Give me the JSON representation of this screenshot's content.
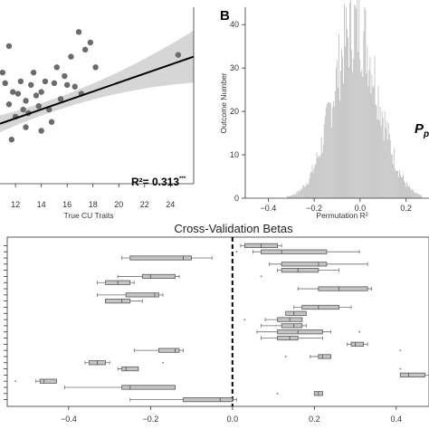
{
  "panel_b_letter": "B",
  "chart_data": [
    {
      "type": "scatter",
      "title": "",
      "xlabel": "True CU Traits",
      "ylabel": "",
      "xlim": [
        10.8,
        25.8
      ],
      "ylim": [
        0.0,
        1.0
      ],
      "xticks": [
        "12",
        "14",
        "16",
        "18",
        "20",
        "22",
        "24"
      ],
      "xtick_values": [
        12,
        14,
        16,
        18,
        20,
        22,
        24
      ],
      "annotation": "R²= 0.313",
      "annotation_sup": "***",
      "fit_line": {
        "x": [
          10.8,
          25.8
        ],
        "y": [
          0.34,
          0.72
        ]
      },
      "points": [
        {
          "x": 11.0,
          "y": 0.63
        },
        {
          "x": 11.2,
          "y": 0.57
        },
        {
          "x": 11.5,
          "y": 0.78
        },
        {
          "x": 11.5,
          "y": 0.45
        },
        {
          "x": 11.7,
          "y": 0.25
        },
        {
          "x": 11.8,
          "y": 0.52
        },
        {
          "x": 12.0,
          "y": 0.38
        },
        {
          "x": 12.2,
          "y": 0.51
        },
        {
          "x": 12.4,
          "y": 0.58
        },
        {
          "x": 12.6,
          "y": 0.42
        },
        {
          "x": 12.8,
          "y": 0.32
        },
        {
          "x": 12.8,
          "y": 0.47
        },
        {
          "x": 13.0,
          "y": 0.4
        },
        {
          "x": 13.2,
          "y": 0.56
        },
        {
          "x": 13.4,
          "y": 0.63
        },
        {
          "x": 13.6,
          "y": 0.5
        },
        {
          "x": 13.8,
          "y": 0.44
        },
        {
          "x": 14.0,
          "y": 0.52
        },
        {
          "x": 14.0,
          "y": 0.3
        },
        {
          "x": 14.3,
          "y": 0.58
        },
        {
          "x": 14.6,
          "y": 0.42
        },
        {
          "x": 14.8,
          "y": 0.35
        },
        {
          "x": 15.0,
          "y": 0.57
        },
        {
          "x": 15.2,
          "y": 0.66
        },
        {
          "x": 15.5,
          "y": 0.48
        },
        {
          "x": 15.8,
          "y": 0.61
        },
        {
          "x": 16.0,
          "y": 0.56
        },
        {
          "x": 16.3,
          "y": 0.72
        },
        {
          "x": 16.6,
          "y": 0.55
        },
        {
          "x": 16.9,
          "y": 0.86
        },
        {
          "x": 17.1,
          "y": 0.51
        },
        {
          "x": 17.4,
          "y": 0.76
        },
        {
          "x": 17.8,
          "y": 0.8
        },
        {
          "x": 18.2,
          "y": 0.66
        },
        {
          "x": 24.6,
          "y": 0.73
        }
      ]
    },
    {
      "type": "bar",
      "title": "",
      "xlabel": "Permutation R²",
      "ylabel": "Outcome Number",
      "xlim": [
        -0.5,
        0.3
      ],
      "ylim": [
        0,
        44
      ],
      "xticks": [
        "−0.4",
        "−0.2",
        "0.0",
        "0.2"
      ],
      "xtick_values": [
        -0.4,
        -0.2,
        0.0,
        0.2
      ],
      "yticks": [
        "0",
        "10",
        "20",
        "30",
        "40"
      ],
      "ytick_values": [
        0,
        10,
        20,
        30,
        40
      ],
      "edge_labels": {
        "p_letter": "P",
        "p_sub": "p"
      },
      "distribution": {
        "mean": -0.02,
        "sd": 0.098,
        "peak": 40
      },
      "bin_width": 0.004
    },
    {
      "type": "boxplot",
      "title": "Cross-Validation Betas",
      "xlim": [
        -0.55,
        0.48
      ],
      "xticks": [
        "−0.4",
        "−0.2",
        "0.0",
        "0.2",
        "0.4"
      ],
      "xtick_values": [
        -0.4,
        -0.2,
        0.0,
        0.2,
        0.4
      ],
      "reference_line": 0.0,
      "boxes": [
        {
          "wmin": 0.02,
          "q1": 0.03,
          "median": 0.07,
          "q3": 0.11,
          "wmax": 0.12
        },
        {
          "wmin": 0.05,
          "q1": 0.07,
          "median": 0.12,
          "q3": 0.23,
          "wmax": 0.31,
          "outliers": [
            0.01
          ]
        },
        {
          "wmin": -0.27,
          "q1": -0.25,
          "median": -0.12,
          "q3": -0.1,
          "wmax": -0.05
        },
        {
          "wmin": 0.09,
          "q1": 0.12,
          "median": 0.21,
          "q3": 0.23,
          "wmax": 0.33
        },
        {
          "wmin": 0.11,
          "q1": 0.12,
          "median": 0.16,
          "q3": 0.21,
          "wmax": 0.26
        },
        {
          "wmin": -0.28,
          "q1": -0.22,
          "median": -0.2,
          "q3": -0.14,
          "wmax": -0.13,
          "outliers": [
            0.07
          ]
        },
        {
          "wmin": -0.33,
          "q1": -0.31,
          "median": -0.28,
          "q3": -0.25,
          "wmax": -0.24
        },
        {
          "wmin": 0.16,
          "q1": 0.21,
          "median": 0.26,
          "q3": 0.33,
          "wmax": 0.34
        },
        {
          "wmin": -0.33,
          "q1": -0.26,
          "median": -0.19,
          "q3": -0.18,
          "wmax": -0.17
        },
        {
          "wmin": -0.31,
          "q1": -0.31,
          "median": -0.27,
          "q3": -0.25,
          "wmax": -0.22
        },
        {
          "wmin": 0.15,
          "q1": 0.17,
          "median": 0.21,
          "q3": 0.26,
          "wmax": 0.29
        },
        {
          "wmin": 0.14,
          "q1": 0.13,
          "median": 0.15,
          "q3": 0.18,
          "wmax": 0.18
        },
        {
          "wmin": 0.08,
          "q1": 0.11,
          "median": 0.14,
          "q3": 0.17,
          "wmax": 0.17,
          "outliers": [
            0.03
          ]
        },
        {
          "wmin": 0.07,
          "q1": 0.12,
          "median": 0.15,
          "q3": 0.17,
          "wmax": 0.18
        },
        {
          "wmin": 0.06,
          "q1": 0.11,
          "median": 0.16,
          "q3": 0.22,
          "wmax": 0.24,
          "outliers": [
            0.31
          ]
        },
        {
          "wmin": 0.07,
          "q1": 0.11,
          "median": 0.14,
          "q3": 0.16,
          "wmax": 0.22
        },
        {
          "wmin": 0.28,
          "q1": 0.29,
          "median": 0.3,
          "q3": 0.32,
          "wmax": 0.33
        },
        {
          "wmin": -0.24,
          "q1": -0.18,
          "median": -0.14,
          "q3": -0.13,
          "wmax": -0.12,
          "outliers": [
            0.41
          ]
        },
        {
          "wmin": 0.19,
          "q1": 0.21,
          "median": 0.22,
          "q3": 0.24,
          "wmax": 0.24,
          "outliers": [
            0.13
          ]
        },
        {
          "wmin": -0.36,
          "q1": -0.35,
          "median": -0.33,
          "q3": -0.31,
          "wmax": -0.3,
          "outliers": [
            -0.17
          ]
        },
        {
          "wmin": -0.28,
          "q1": -0.27,
          "median": -0.26,
          "q3": -0.23,
          "wmax": -0.23,
          "outliers": [
            0.41
          ]
        },
        {
          "wmin": 0.41,
          "q1": 0.41,
          "median": 0.43,
          "q3": 0.47,
          "wmax": 0.48
        },
        {
          "wmin": -0.48,
          "q1": -0.47,
          "median": -0.46,
          "q3": -0.43,
          "wmax": -0.43,
          "outliers": [
            -0.53
          ]
        },
        {
          "wmin": -0.41,
          "q1": -0.27,
          "median": -0.25,
          "q3": -0.14,
          "wmax": -0.14
        },
        {
          "wmin": 0.2,
          "q1": 0.2,
          "median": 0.21,
          "q3": 0.22,
          "wmax": 0.22,
          "outliers": [
            0.11
          ]
        },
        {
          "wmin": -0.25,
          "q1": -0.12,
          "median": -0.03,
          "q3": 0.0,
          "wmax": 0.01
        }
      ]
    }
  ]
}
